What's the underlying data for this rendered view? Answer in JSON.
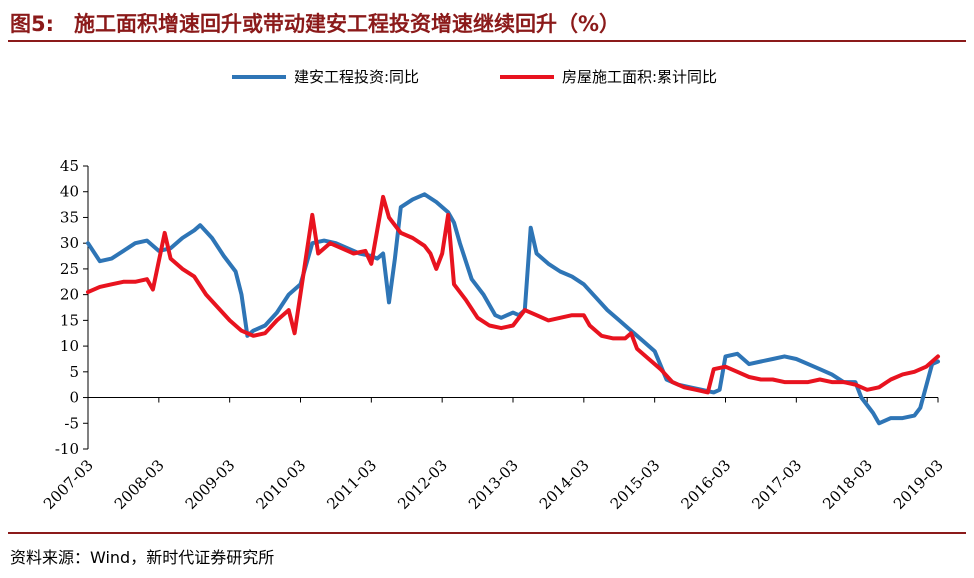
{
  "figure": {
    "number": "图5:",
    "title": "施工面积增速回升或带动建安工程投资增速继续回升（%）"
  },
  "source": "资料来源：Wind，新时代证券研究所",
  "chart_data": {
    "type": "line",
    "ylim": [
      -10,
      45
    ],
    "yticks": [
      -10,
      -5,
      0,
      5,
      10,
      15,
      20,
      25,
      30,
      35,
      40,
      45
    ],
    "xlim": [
      "2007-03",
      "2019-03"
    ],
    "xticks": [
      "2007-03",
      "2008-03",
      "2009-03",
      "2010-03",
      "2011-03",
      "2012-03",
      "2013-03",
      "2014-03",
      "2015-03",
      "2016-03",
      "2017-03",
      "2018-03",
      "2019-03"
    ],
    "grid": false,
    "legend_position": "top-center",
    "series": [
      {
        "name": "建安工程投资:同比",
        "color": "#2e75b6",
        "points": [
          [
            "2007-03",
            30
          ],
          [
            "2007-05",
            26.5
          ],
          [
            "2007-07",
            27
          ],
          [
            "2007-09",
            28.5
          ],
          [
            "2007-11",
            30
          ],
          [
            "2008-01",
            30.5
          ],
          [
            "2008-03",
            28.5
          ],
          [
            "2008-05",
            29
          ],
          [
            "2008-07",
            31
          ],
          [
            "2008-09",
            32.5
          ],
          [
            "2008-10",
            33.5
          ],
          [
            "2008-12",
            31
          ],
          [
            "2009-02",
            27.5
          ],
          [
            "2009-04",
            24.5
          ],
          [
            "2009-05",
            20
          ],
          [
            "2009-06",
            12
          ],
          [
            "2009-07",
            13
          ],
          [
            "2009-09",
            14
          ],
          [
            "2009-11",
            16.5
          ],
          [
            "2010-01",
            20
          ],
          [
            "2010-03",
            22
          ],
          [
            "2010-05",
            30
          ],
          [
            "2010-07",
            30.5
          ],
          [
            "2010-09",
            30
          ],
          [
            "2010-11",
            29
          ],
          [
            "2011-01",
            28
          ],
          [
            "2011-03",
            27.5
          ],
          [
            "2011-04",
            27
          ],
          [
            "2011-05",
            28
          ],
          [
            "2011-06",
            18.5
          ],
          [
            "2011-07",
            27
          ],
          [
            "2011-08",
            37
          ],
          [
            "2011-10",
            38.5
          ],
          [
            "2011-12",
            39.5
          ],
          [
            "2012-02",
            38
          ],
          [
            "2012-04",
            36
          ],
          [
            "2012-05",
            34
          ],
          [
            "2012-06",
            30
          ],
          [
            "2012-08",
            23
          ],
          [
            "2012-10",
            20
          ],
          [
            "2012-12",
            16
          ],
          [
            "2013-01",
            15.5
          ],
          [
            "2013-03",
            16.5
          ],
          [
            "2013-04",
            16
          ],
          [
            "2013-05",
            17
          ],
          [
            "2013-06",
            33
          ],
          [
            "2013-07",
            28
          ],
          [
            "2013-09",
            26
          ],
          [
            "2013-11",
            24.5
          ],
          [
            "2014-01",
            23.5
          ],
          [
            "2014-03",
            22
          ],
          [
            "2014-05",
            19.5
          ],
          [
            "2014-07",
            17
          ],
          [
            "2014-09",
            15
          ],
          [
            "2014-11",
            13
          ],
          [
            "2015-01",
            11
          ],
          [
            "2015-03",
            9
          ],
          [
            "2015-05",
            3.5
          ],
          [
            "2015-07",
            2.5
          ],
          [
            "2015-09",
            2
          ],
          [
            "2015-11",
            1.5
          ],
          [
            "2016-01",
            1
          ],
          [
            "2016-02",
            1.5
          ],
          [
            "2016-03",
            8
          ],
          [
            "2016-05",
            8.5
          ],
          [
            "2016-07",
            6.5
          ],
          [
            "2016-09",
            7
          ],
          [
            "2016-11",
            7.5
          ],
          [
            "2017-01",
            8
          ],
          [
            "2017-03",
            7.5
          ],
          [
            "2017-05",
            6.5
          ],
          [
            "2017-07",
            5.5
          ],
          [
            "2017-09",
            4.5
          ],
          [
            "2017-11",
            3
          ],
          [
            "2018-01",
            3
          ],
          [
            "2018-02",
            0
          ],
          [
            "2018-04",
            -3
          ],
          [
            "2018-05",
            -5
          ],
          [
            "2018-07",
            -4
          ],
          [
            "2018-09",
            -4
          ],
          [
            "2018-11",
            -3.5
          ],
          [
            "2018-12",
            -2
          ],
          [
            "2019-02",
            6.5
          ],
          [
            "2019-03",
            7
          ]
        ]
      },
      {
        "name": "房屋施工面积:累计同比",
        "color": "#e8131f",
        "points": [
          [
            "2007-03",
            20.5
          ],
          [
            "2007-05",
            21.5
          ],
          [
            "2007-07",
            22
          ],
          [
            "2007-09",
            22.5
          ],
          [
            "2007-11",
            22.5
          ],
          [
            "2008-01",
            23
          ],
          [
            "2008-02",
            21
          ],
          [
            "2008-04",
            32
          ],
          [
            "2008-05",
            27
          ],
          [
            "2008-07",
            25
          ],
          [
            "2008-09",
            23.5
          ],
          [
            "2008-11",
            20
          ],
          [
            "2009-01",
            17.5
          ],
          [
            "2009-03",
            15
          ],
          [
            "2009-05",
            13
          ],
          [
            "2009-07",
            12
          ],
          [
            "2009-09",
            12.5
          ],
          [
            "2009-11",
            15
          ],
          [
            "2010-01",
            17
          ],
          [
            "2010-02",
            12.5
          ],
          [
            "2010-05",
            35.5
          ],
          [
            "2010-06",
            28
          ],
          [
            "2010-08",
            30
          ],
          [
            "2010-10",
            29
          ],
          [
            "2010-12",
            28
          ],
          [
            "2011-02",
            28.5
          ],
          [
            "2011-03",
            26
          ],
          [
            "2011-05",
            39
          ],
          [
            "2011-06",
            35
          ],
          [
            "2011-08",
            32
          ],
          [
            "2011-10",
            31
          ],
          [
            "2011-12",
            29.5
          ],
          [
            "2012-01",
            28
          ],
          [
            "2012-02",
            25
          ],
          [
            "2012-03",
            28
          ],
          [
            "2012-04",
            35.5
          ],
          [
            "2012-05",
            22
          ],
          [
            "2012-07",
            19
          ],
          [
            "2012-09",
            15.5
          ],
          [
            "2012-11",
            14
          ],
          [
            "2013-01",
            13.5
          ],
          [
            "2013-03",
            14
          ],
          [
            "2013-05",
            17
          ],
          [
            "2013-07",
            16
          ],
          [
            "2013-09",
            15
          ],
          [
            "2013-11",
            15.5
          ],
          [
            "2014-01",
            16
          ],
          [
            "2014-03",
            16
          ],
          [
            "2014-04",
            14
          ],
          [
            "2014-06",
            12
          ],
          [
            "2014-08",
            11.5
          ],
          [
            "2014-10",
            11.5
          ],
          [
            "2014-11",
            12.5
          ],
          [
            "2014-12",
            9.5
          ],
          [
            "2015-02",
            7.5
          ],
          [
            "2015-04",
            5.5
          ],
          [
            "2015-06",
            3
          ],
          [
            "2015-08",
            2
          ],
          [
            "2015-10",
            1.5
          ],
          [
            "2015-12",
            1
          ],
          [
            "2016-01",
            5.5
          ],
          [
            "2016-03",
            6
          ],
          [
            "2016-05",
            5
          ],
          [
            "2016-07",
            4
          ],
          [
            "2016-09",
            3.5
          ],
          [
            "2016-11",
            3.5
          ],
          [
            "2017-01",
            3
          ],
          [
            "2017-03",
            3
          ],
          [
            "2017-05",
            3
          ],
          [
            "2017-07",
            3.5
          ],
          [
            "2017-09",
            3
          ],
          [
            "2017-11",
            3
          ],
          [
            "2018-01",
            2.5
          ],
          [
            "2018-03",
            1.5
          ],
          [
            "2018-05",
            2
          ],
          [
            "2018-07",
            3.5
          ],
          [
            "2018-09",
            4.5
          ],
          [
            "2018-11",
            5
          ],
          [
            "2019-01",
            6
          ],
          [
            "2019-03",
            8
          ]
        ]
      }
    ]
  }
}
